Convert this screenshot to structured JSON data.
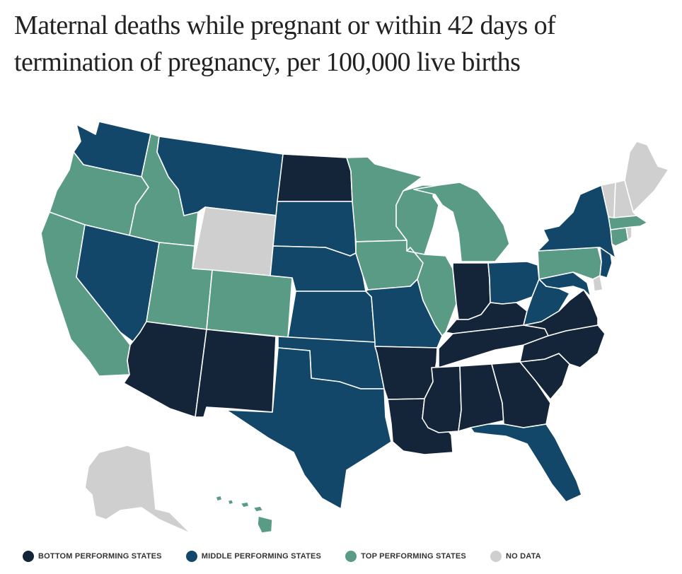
{
  "title": "Maternal deaths while pregnant or within 42 days of termination of pregnancy, per 100,000 live births",
  "colors": {
    "bottom": "#152539",
    "middle": "#12476a",
    "top": "#5a9b85",
    "nodata": "#cfcfcf",
    "border": "#ffffff"
  },
  "legend": [
    {
      "key": "bottom",
      "label": "BOTTOM PERFORMING STATES"
    },
    {
      "key": "middle",
      "label": "MIDDLE PERFORMING STATES"
    },
    {
      "key": "top",
      "label": "TOP PERFORMING STATES"
    },
    {
      "key": "nodata",
      "label": "NO DATA"
    }
  ],
  "states": [
    {
      "code": "WA",
      "category": "middle"
    },
    {
      "code": "OR",
      "category": "top"
    },
    {
      "code": "CA",
      "category": "top"
    },
    {
      "code": "ID",
      "category": "top"
    },
    {
      "code": "NV",
      "category": "middle"
    },
    {
      "code": "MT",
      "category": "middle"
    },
    {
      "code": "WY",
      "category": "nodata"
    },
    {
      "code": "UT",
      "category": "top"
    },
    {
      "code": "AZ",
      "category": "bottom"
    },
    {
      "code": "CO",
      "category": "top"
    },
    {
      "code": "NM",
      "category": "bottom"
    },
    {
      "code": "ND",
      "category": "bottom"
    },
    {
      "code": "SD",
      "category": "middle"
    },
    {
      "code": "NE",
      "category": "middle"
    },
    {
      "code": "KS",
      "category": "middle"
    },
    {
      "code": "OK",
      "category": "middle"
    },
    {
      "code": "TX",
      "category": "middle"
    },
    {
      "code": "MN",
      "category": "top"
    },
    {
      "code": "IA",
      "category": "top"
    },
    {
      "code": "MO",
      "category": "middle"
    },
    {
      "code": "AR",
      "category": "bottom"
    },
    {
      "code": "LA",
      "category": "bottom"
    },
    {
      "code": "WI",
      "category": "top"
    },
    {
      "code": "IL",
      "category": "top"
    },
    {
      "code": "MI",
      "category": "top"
    },
    {
      "code": "IN",
      "category": "bottom"
    },
    {
      "code": "OH",
      "category": "middle"
    },
    {
      "code": "KY",
      "category": "bottom"
    },
    {
      "code": "TN",
      "category": "bottom"
    },
    {
      "code": "MS",
      "category": "bottom"
    },
    {
      "code": "AL",
      "category": "bottom"
    },
    {
      "code": "GA",
      "category": "bottom"
    },
    {
      "code": "FL",
      "category": "middle"
    },
    {
      "code": "SC",
      "category": "bottom"
    },
    {
      "code": "NC",
      "category": "bottom"
    },
    {
      "code": "VA",
      "category": "bottom"
    },
    {
      "code": "WV",
      "category": "middle"
    },
    {
      "code": "MD",
      "category": "middle"
    },
    {
      "code": "DE",
      "category": "nodata"
    },
    {
      "code": "NJ",
      "category": "middle"
    },
    {
      "code": "PA",
      "category": "top"
    },
    {
      "code": "NY",
      "category": "middle"
    },
    {
      "code": "CT",
      "category": "top"
    },
    {
      "code": "RI",
      "category": "nodata"
    },
    {
      "code": "MA",
      "category": "top"
    },
    {
      "code": "VT",
      "category": "nodata"
    },
    {
      "code": "NH",
      "category": "nodata"
    },
    {
      "code": "ME",
      "category": "nodata"
    },
    {
      "code": "AK",
      "category": "nodata"
    },
    {
      "code": "HI",
      "category": "top"
    }
  ]
}
